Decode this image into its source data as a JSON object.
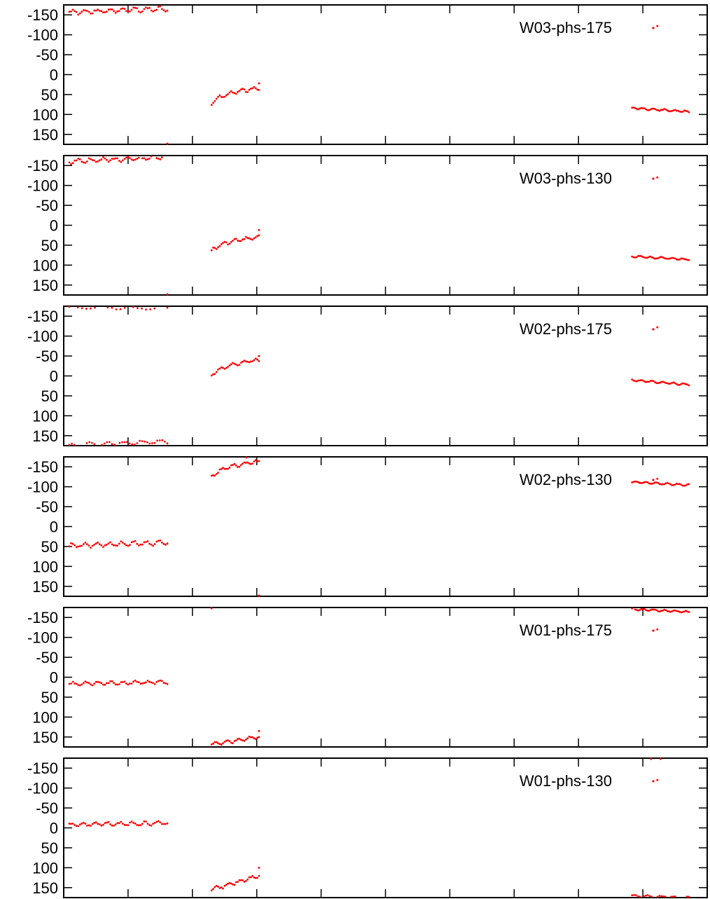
{
  "chart_data": [
    {
      "type": "scatter",
      "legend": "W03-phs-175",
      "legend_position": "top-right",
      "series_color": "#ff0000",
      "ylim": [
        -175,
        175
      ],
      "y_reversed": true,
      "yticks": [
        "-150",
        "-100",
        "-50",
        "0",
        "50",
        "100",
        "150"
      ],
      "x_tick_count": 10,
      "grid": false,
      "clusters": [
        {
          "start": 0,
          "end": 0.155,
          "base": -157,
          "end_val": -165,
          "wiggle": 5,
          "n": 56,
          "seed": 3
        },
        {
          "start": 0.225,
          "end": 0.3,
          "base": 73,
          "end_val": 34,
          "wiggle": 4,
          "n": 30,
          "seed": 7,
          "log": true
        },
        {
          "start": 0.89,
          "end": 0.98,
          "base": 84,
          "end_val": 93,
          "wiggle": 2,
          "n": 38,
          "seed": 11
        }
      ],
      "outliers": [
        [
          0.3,
          22
        ],
        [
          0.155,
          178
        ],
        [
          0.93,
          -122
        ]
      ]
    },
    {
      "type": "scatter",
      "legend": "W03-phs-130",
      "legend_position": "top-right",
      "series_color": "#ff0000",
      "ylim": [
        -175,
        175
      ],
      "y_reversed": true,
      "yticks": [
        "-150",
        "-100",
        "-50",
        "0",
        "50",
        "100",
        "150"
      ],
      "x_tick_count": 10,
      "grid": false,
      "clusters": [
        {
          "start": 0,
          "end": 0.155,
          "base": -160,
          "end_val": -171,
          "wiggle": 5,
          "n": 56,
          "seed": 13
        },
        {
          "start": 0.225,
          "end": 0.3,
          "base": 65,
          "end_val": 30,
          "wiggle": 4,
          "n": 30,
          "seed": 17,
          "log": true
        },
        {
          "start": 0.89,
          "end": 0.98,
          "base": 78,
          "end_val": 86,
          "wiggle": 2,
          "n": 38,
          "seed": 19
        }
      ],
      "outliers": [
        [
          0.3,
          12
        ],
        [
          0.155,
          178
        ],
        [
          0.93,
          -120
        ]
      ]
    },
    {
      "type": "scatter",
      "legend": "W02-phs-175",
      "legend_position": "top-right",
      "series_color": "#ff0000",
      "ylim": [
        -175,
        175
      ],
      "y_reversed": true,
      "yticks": [
        "-150",
        "-100",
        "-50",
        "0",
        "50",
        "100",
        "150"
      ],
      "x_tick_count": 10,
      "grid": false,
      "clusters": [
        {
          "start": 0,
          "end": 0.155,
          "base": -172,
          "end_val": -170,
          "wiggle": 3,
          "n": 24,
          "seed": 23,
          "clip": true
        },
        {
          "start": 0,
          "end": 0.155,
          "base": 174,
          "end_val": 165,
          "wiggle": 4,
          "n": 40,
          "seed": 29,
          "clip": true
        },
        {
          "start": 0.225,
          "end": 0.3,
          "base": 0,
          "end_val": -40,
          "wiggle": 4,
          "n": 30,
          "seed": 31,
          "log": true
        },
        {
          "start": 0.89,
          "end": 0.98,
          "base": 10,
          "end_val": 22,
          "wiggle": 2,
          "n": 38,
          "seed": 37
        }
      ],
      "outliers": [
        [
          0.3,
          -50
        ],
        [
          0.93,
          -122
        ]
      ]
    },
    {
      "type": "scatter",
      "legend": "W02-phs-130",
      "legend_position": "top-right",
      "series_color": "#ff0000",
      "ylim": [
        -175,
        175
      ],
      "y_reversed": true,
      "yticks": [
        "-150",
        "-100",
        "-50",
        "0",
        "50",
        "100",
        "150"
      ],
      "x_tick_count": 10,
      "grid": false,
      "clusters": [
        {
          "start": 0,
          "end": 0.155,
          "base": 48,
          "end_val": 40,
          "wiggle": 5,
          "n": 56,
          "seed": 41
        },
        {
          "start": 0.225,
          "end": 0.3,
          "base": -125,
          "end_val": -163,
          "wiggle": 4,
          "n": 30,
          "seed": 43,
          "log": true
        },
        {
          "start": 0.89,
          "end": 0.98,
          "base": -112,
          "end_val": -104,
          "wiggle": 2,
          "n": 38,
          "seed": 47
        }
      ],
      "outliers": [
        [
          0.28,
          -175
        ],
        [
          0.3,
          176
        ],
        [
          0.93,
          -120
        ]
      ]
    },
    {
      "type": "scatter",
      "legend": "W01-phs-175",
      "legend_position": "top-right",
      "series_color": "#ff0000",
      "ylim": [
        -175,
        175
      ],
      "y_reversed": true,
      "yticks": [
        "-150",
        "-100",
        "-50",
        "0",
        "50",
        "100",
        "150"
      ],
      "x_tick_count": 10,
      "grid": false,
      "clusters": [
        {
          "start": 0,
          "end": 0.155,
          "base": 17,
          "end_val": 12,
          "wiggle": 4,
          "n": 56,
          "seed": 53
        },
        {
          "start": 0.225,
          "end": 0.3,
          "base": 168,
          "end_val": 150,
          "wiggle": 4,
          "n": 30,
          "seed": 59
        },
        {
          "start": 0.89,
          "end": 0.98,
          "base": -171,
          "end_val": -164,
          "wiggle": 2,
          "n": 38,
          "seed": 61
        }
      ],
      "outliers": [
        [
          0.3,
          135
        ],
        [
          0.225,
          -179
        ],
        [
          0.93,
          -120
        ]
      ]
    },
    {
      "type": "scatter",
      "legend": "W01-phs-130",
      "legend_position": "top-right",
      "series_color": "#ff0000",
      "ylim": [
        -175,
        175
      ],
      "y_reversed": true,
      "yticks": [
        "-150",
        "-100",
        "-50",
        "0",
        "50",
        "100",
        "150"
      ],
      "x_tick_count": 10,
      "grid": false,
      "clusters": [
        {
          "start": 0,
          "end": 0.155,
          "base": -8,
          "end_val": -12,
          "wiggle": 4,
          "n": 56,
          "seed": 67
        },
        {
          "start": 0.225,
          "end": 0.3,
          "base": 155,
          "end_val": 120,
          "wiggle": 4,
          "n": 30,
          "seed": 71
        },
        {
          "start": 0.89,
          "end": 0.98,
          "base": 170,
          "end_val": 175,
          "wiggle": 2,
          "n": 30,
          "seed": 73,
          "clip": true
        }
      ],
      "outliers": [
        [
          0.3,
          100
        ],
        [
          0.92,
          -177
        ],
        [
          0.935,
          -177
        ],
        [
          0.93,
          -120
        ]
      ]
    }
  ]
}
